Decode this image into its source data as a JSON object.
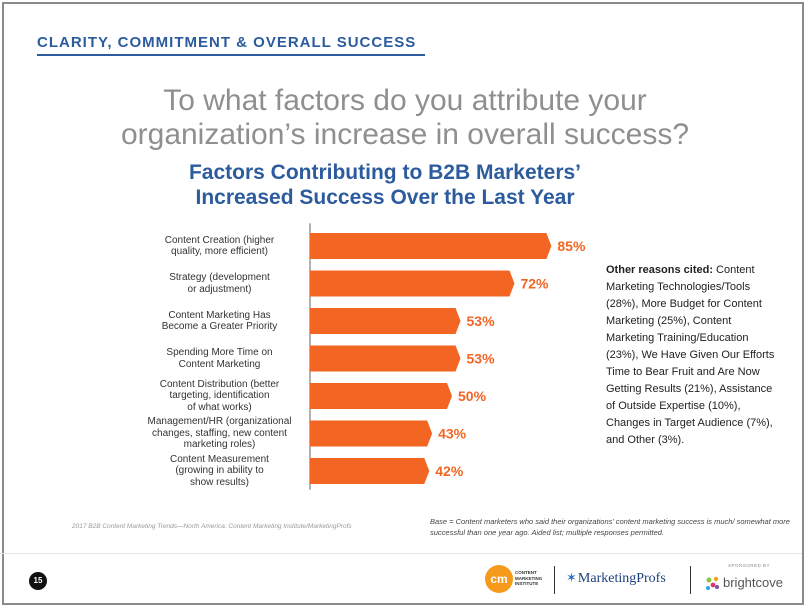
{
  "header": {
    "section_label": "CLARITY, COMMITMENT & OVERALL SUCCESS",
    "question_line1": "To what factors do you attribute your",
    "question_line2": "organization’s increase in overall success?"
  },
  "chart_data": {
    "type": "bar",
    "orientation": "horizontal",
    "title_line1": "Factors Contributing to B2B Marketers’",
    "title_line2": "Increased Success Over the Last Year",
    "bar_color": "#f26522",
    "label_color": "#f26522",
    "xlim": [
      0,
      100
    ],
    "grid": false,
    "categories": [
      [
        "Content Creation (higher",
        "quality, more efficient)"
      ],
      [
        "Strategy (development",
        "or adjustment)"
      ],
      [
        "Content Marketing Has",
        "Become a Greater Priority"
      ],
      [
        "Spending More Time on",
        "Content Marketing"
      ],
      [
        "Content Distribution (better",
        "targeting, identification",
        "of what works)"
      ],
      [
        "Management/HR (organizational",
        "changes, staffing, new content",
        "marketing roles)"
      ],
      [
        "Content Measurement",
        "(growing in ability to",
        "show results)"
      ]
    ],
    "values": [
      85,
      72,
      53,
      53,
      50,
      43,
      42
    ],
    "value_labels": [
      "85%",
      "72%",
      "53%",
      "53%",
      "50%",
      "43%",
      "42%"
    ]
  },
  "other_reasons": {
    "heading": "Other reasons cited:",
    "text": " Content Marketing Technologies/Tools (28%), More Budget for Content Marketing (25%), Content Marketing Training/Education (23%), We Have Given Our Efforts Time to Bear Fruit and Are Now Getting Results (21%), Assistance of Outside Expertise (10%), Changes in Target Audience (7%), and Other (3%)."
  },
  "footnotes": {
    "base": "Base = Content marketers who said their organizations’ content marketing success is much/ somewhat more successful than one year ago. Aided list; multiple responses permitted.",
    "source": "2017 B2B Content Marketing Trends—North America: Content Marketing Institute/MarketingProfs"
  },
  "footer": {
    "page_number": "15",
    "cmi_initials": "cm",
    "cmi_name": "CONTENT MARKETING INSTITUTE",
    "marketingprofs_name": "MarketingProfs",
    "sponsored_by": "SPONSORED BY",
    "brightcove_name": "brightcove"
  }
}
